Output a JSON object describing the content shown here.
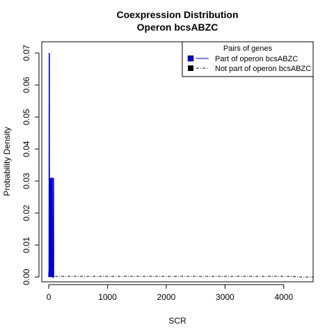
{
  "chart_data": {
    "type": "line",
    "title": "Coexpression Distribution",
    "subtitle": "Operon bcsABZC",
    "xlabel": "SCR",
    "ylabel": "Probability Density",
    "xlim": [
      -120,
      4500
    ],
    "ylim": [
      -0.0015,
      0.0735
    ],
    "x_ticks": [
      "0",
      "1000",
      "2000",
      "3000",
      "4000"
    ],
    "y_ticks": [
      "0.00",
      "0.01",
      "0.02",
      "0.03",
      "0.04",
      "0.05",
      "0.06",
      "0.07"
    ],
    "legend": {
      "title": "Pairs of genes",
      "position": "top-right"
    },
    "series": [
      {
        "name": "Part of operon bcsABZC",
        "color": "#0000cc",
        "line_style": "solid",
        "x": [
          0,
          3,
          5,
          8,
          10,
          12,
          15,
          18,
          20,
          22,
          25,
          28,
          30,
          33,
          35,
          38,
          40,
          43,
          45,
          48,
          50,
          53,
          55,
          58,
          60,
          63,
          66,
          70,
          78,
          80,
          82,
          90
        ],
        "y": [
          0.0,
          0.002,
          0.0,
          0.07,
          0.0,
          0.031,
          0.0,
          0.002,
          0.031,
          0.0,
          0.031,
          0.0,
          0.002,
          0.031,
          0.0,
          0.031,
          0.0,
          0.002,
          0.031,
          0.0,
          0.031,
          0.0,
          0.002,
          0.031,
          0.0,
          0.0,
          0.0,
          0.0,
          0.0,
          0.031,
          0.0,
          0.0
        ]
      },
      {
        "name": "Not part of operon bcsABZC",
        "color": "#000000",
        "line_style": "dashed",
        "x": [
          0,
          4000,
          4100,
          4200,
          4300,
          4500
        ],
        "y": [
          0.0002,
          0.0002,
          0.0002,
          0.0001,
          0.0,
          0.0
        ]
      }
    ]
  }
}
